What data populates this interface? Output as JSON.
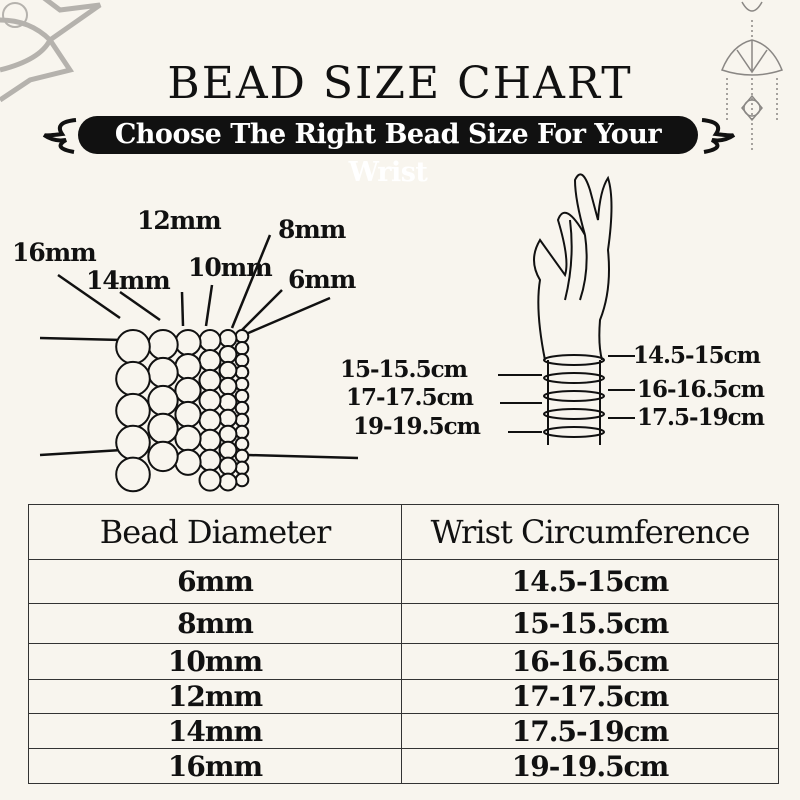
{
  "title": "BEAD SIZE CHART",
  "subtitle": "Choose The Right Bead Size For Your Wrist",
  "bead_labels": [
    "16mm",
    "14mm",
    "12mm",
    "10mm",
    "8mm",
    "6mm"
  ],
  "wrist_labels_left": [
    "15-15.5cm",
    "17-17.5cm",
    "19-19.5cm"
  ],
  "wrist_labels_right": [
    "14.5-15cm",
    "16-16.5cm",
    "17.5-19cm"
  ],
  "table": {
    "headers": [
      "Bead Diameter",
      "Wrist Circumference"
    ],
    "rows": [
      [
        "6mm",
        "14.5-15cm"
      ],
      [
        "8mm",
        "15-15.5cm"
      ],
      [
        "10mm",
        "16-16.5cm"
      ],
      [
        "12mm",
        "17-17.5cm"
      ],
      [
        "14mm",
        "17.5-19cm"
      ],
      [
        "16mm",
        "19-19.5cm"
      ]
    ]
  },
  "colors": {
    "background": "#f8f5ee",
    "ink": "#111111",
    "ornament": "#b5b2ad"
  }
}
